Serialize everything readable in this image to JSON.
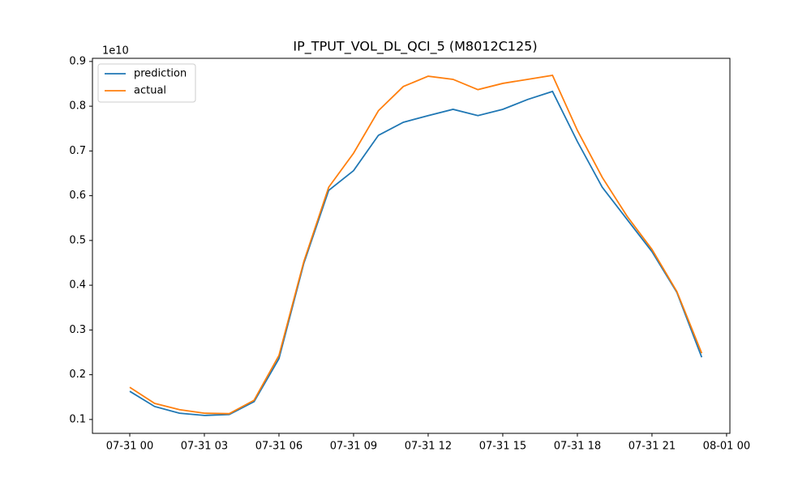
{
  "chart_data": {
    "type": "line",
    "title": "IP_TPUT_VOL_DL_QCI_5 (M8012C125)",
    "y_offset_label": "1e10",
    "x": [
      "07-31 00",
      "07-31 01",
      "07-31 02",
      "07-31 03",
      "07-31 04",
      "07-31 05",
      "07-31 06",
      "07-31 07",
      "07-31 08",
      "07-31 09",
      "07-31 10",
      "07-31 11",
      "07-31 12",
      "07-31 13",
      "07-31 14",
      "07-31 15",
      "07-31 16",
      "07-31 17",
      "07-31 18",
      "07-31 19",
      "07-31 20",
      "07-31 21",
      "07-31 22",
      "07-31 23"
    ],
    "series": [
      {
        "name": "prediction",
        "color": "#1f77b4",
        "values": [
          0.163,
          0.129,
          0.114,
          0.109,
          0.111,
          0.14,
          0.236,
          0.449,
          0.612,
          0.656,
          0.735,
          0.764,
          0.779,
          0.793,
          0.779,
          0.793,
          0.815,
          0.833,
          0.721,
          0.619,
          0.547,
          0.475,
          0.384,
          0.239
        ]
      },
      {
        "name": "actual",
        "color": "#ff7f0e",
        "values": [
          0.172,
          0.136,
          0.122,
          0.114,
          0.113,
          0.143,
          0.243,
          0.453,
          0.619,
          0.695,
          0.79,
          0.844,
          0.867,
          0.86,
          0.837,
          0.851,
          0.86,
          0.869,
          0.746,
          0.641,
          0.554,
          0.48,
          0.386,
          0.248
        ]
      }
    ],
    "xlim": [
      "07-30 22:30",
      "08-01 00:08"
    ],
    "xticks": [
      "07-31 00",
      "07-31 03",
      "07-31 06",
      "07-31 09",
      "07-31 12",
      "07-31 15",
      "07-31 18",
      "07-31 21",
      "08-01 00"
    ],
    "ylim": [
      0.069,
      0.907
    ],
    "yticks": [
      0.1,
      0.2,
      0.3,
      0.4,
      0.5,
      0.6,
      0.7,
      0.8,
      0.9
    ],
    "legend": "upper left",
    "grid": false
  }
}
